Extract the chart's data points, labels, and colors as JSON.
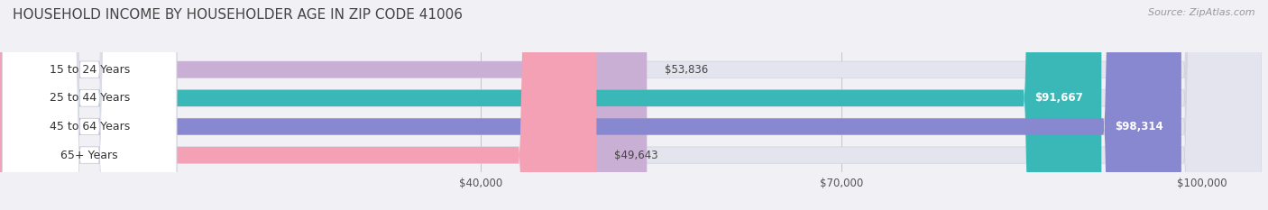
{
  "title": "HOUSEHOLD INCOME BY HOUSEHOLDER AGE IN ZIP CODE 41006",
  "source": "Source: ZipAtlas.com",
  "categories": [
    "15 to 24 Years",
    "25 to 44 Years",
    "45 to 64 Years",
    "65+ Years"
  ],
  "values": [
    53836,
    91667,
    98314,
    49643
  ],
  "bar_colors": [
    "#c9afd4",
    "#3ab8b8",
    "#8888d0",
    "#f4a0b5"
  ],
  "xmin": 0,
  "xmax": 105000,
  "xticks": [
    40000,
    70000,
    100000
  ],
  "xtick_labels": [
    "$40,000",
    "$70,000",
    "$100,000"
  ],
  "value_labels": [
    "$53,836",
    "$91,667",
    "$98,314",
    "$49,643"
  ],
  "value_label_inside": [
    false,
    true,
    true,
    false
  ],
  "bg_color": "#f0f0f5",
  "bar_bg_color": "#e4e4ee",
  "title_fontsize": 11,
  "source_fontsize": 8,
  "label_fontsize": 9,
  "value_fontsize": 8.5,
  "tick_fontsize": 8.5
}
